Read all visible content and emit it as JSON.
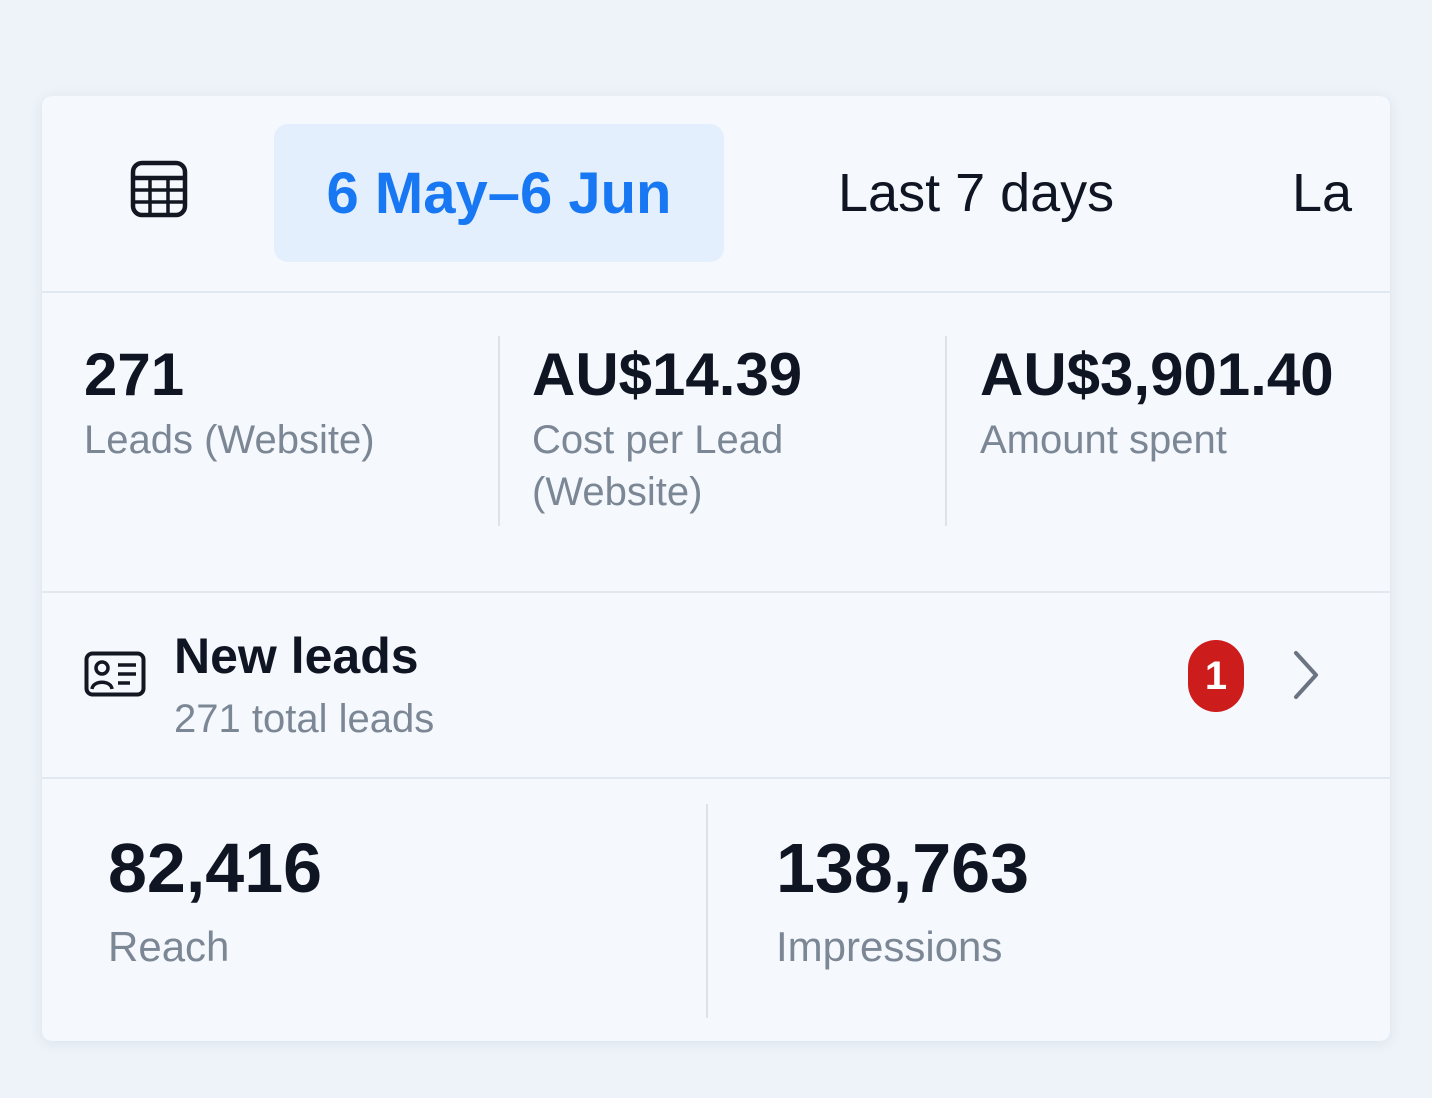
{
  "tabs": {
    "calendar_icon": "calendar-icon",
    "items": [
      {
        "label": "6 May–6 Jun",
        "selected": true
      },
      {
        "label": "Last 7 days",
        "selected": false
      },
      {
        "label": "La",
        "selected": false
      }
    ]
  },
  "summary": [
    {
      "value": "271",
      "label": "Leads (Website)"
    },
    {
      "value": "AU$14.39",
      "label": "Cost per Lead (Website)"
    },
    {
      "value": "AU$3,901.40",
      "label": "Amount spent"
    }
  ],
  "new_leads": {
    "icon": "contact-card-icon",
    "title": "New leads",
    "subtitle": "271 total leads",
    "badge": "1",
    "chevron_icon": "chevron-right-icon"
  },
  "metrics": [
    {
      "value": "82,416",
      "label": "Reach"
    },
    {
      "value": "138,763",
      "label": "Impressions"
    }
  ],
  "colors": {
    "accent": "#1877f2",
    "selected_bg": "#e3effc",
    "badge": "#cc1c1c",
    "muted_text": "#7c8796"
  }
}
